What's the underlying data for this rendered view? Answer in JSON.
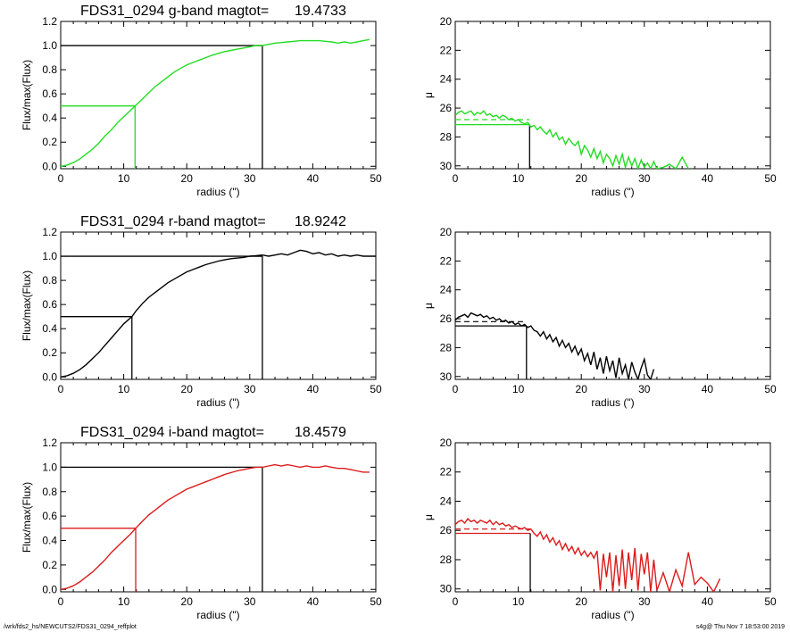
{
  "chart_data": [
    {
      "type": "line",
      "panel": "cumulative-flux",
      "title": "FDS31_0294 g-band  magtot=",
      "magtot": "19.4733",
      "color": "#22dd22",
      "xlabel": "radius (\")",
      "ylabel": "Flux/max(Flux)",
      "xlim": [
        0,
        50
      ],
      "ylim": [
        -0.02,
        1.2
      ],
      "xticks": [
        "0",
        "10",
        "20",
        "30",
        "40",
        "50"
      ],
      "yticks": [
        "0.0",
        "0.2",
        "0.4",
        "0.6",
        "0.8",
        "1.0",
        "1.2"
      ],
      "x": [
        0,
        1,
        2,
        3,
        4,
        5,
        6,
        7,
        8,
        9,
        10,
        11,
        11.8,
        13,
        14,
        15,
        16,
        17,
        18,
        19,
        20,
        21,
        22,
        23,
        24,
        25,
        26,
        27,
        28,
        29,
        30,
        31,
        32,
        33,
        34,
        35,
        36,
        37,
        38,
        39,
        40,
        41,
        42,
        43,
        44,
        45,
        46,
        47,
        48,
        49
      ],
      "y": [
        0,
        0.01,
        0.03,
        0.06,
        0.1,
        0.14,
        0.19,
        0.25,
        0.3,
        0.36,
        0.41,
        0.46,
        0.5,
        0.56,
        0.61,
        0.66,
        0.7,
        0.74,
        0.78,
        0.81,
        0.84,
        0.86,
        0.88,
        0.9,
        0.92,
        0.935,
        0.95,
        0.96,
        0.97,
        0.98,
        0.99,
        1.0,
        1.0,
        1.01,
        1.02,
        1.025,
        1.03,
        1.035,
        1.04,
        1.04,
        1.04,
        1.04,
        1.035,
        1.03,
        1.02,
        1.03,
        1.02,
        1.03,
        1.04,
        1.05
      ],
      "half_radius": 11.8,
      "total_radius": 32
    },
    {
      "type": "line",
      "panel": "surface-brightness",
      "color": "#22dd22",
      "xlabel": "radius (\")",
      "ylabel": "μ",
      "xlim": [
        0,
        50
      ],
      "ylim": [
        30.2,
        20
      ],
      "xticks": [
        "0",
        "10",
        "20",
        "30",
        "40",
        "50"
      ],
      "yticks": [
        "20",
        "22",
        "24",
        "26",
        "28",
        "30"
      ],
      "x": [
        0,
        0.5,
        1,
        1.5,
        2,
        2.5,
        3,
        3.5,
        4,
        4.5,
        5,
        5.5,
        6,
        6.5,
        7,
        7.5,
        8,
        8.5,
        9,
        9.5,
        10,
        10.5,
        11,
        11.5,
        12,
        12.5,
        13,
        13.5,
        14,
        14.5,
        15,
        15.5,
        16,
        16.5,
        17,
        17.5,
        18,
        18.5,
        19,
        19.5,
        20,
        20.5,
        21,
        21.5,
        22,
        22.5,
        23,
        23.5,
        24,
        24.5,
        25,
        25.5,
        26,
        26.5,
        27,
        27.5,
        28,
        28.5,
        29,
        29.5,
        30,
        30.5,
        31,
        31.5,
        32,
        33,
        34,
        35,
        36,
        37
      ],
      "y": [
        26.5,
        26.3,
        26.2,
        26.4,
        26.3,
        26.2,
        26.5,
        26.3,
        26.4,
        26.2,
        26.5,
        26.4,
        26.6,
        26.5,
        26.7,
        26.5,
        26.6,
        26.8,
        26.7,
        26.9,
        26.8,
        27.0,
        27.1,
        27.0,
        27.3,
        27.2,
        27.5,
        27.3,
        27.6,
        27.8,
        27.5,
        28.0,
        27.7,
        28.2,
        28.0,
        28.5,
        28.1,
        28.4,
        28.6,
        28.3,
        29.2,
        28.6,
        28.9,
        29.4,
        28.8,
        29.5,
        29.0,
        29.8,
        29.2,
        29.5,
        30.0,
        29.3,
        29.9,
        29.2,
        30.1,
        29.4,
        30.0,
        29.5,
        30.2,
        29.6,
        30.1,
        29.8,
        30.2,
        29.7,
        30.2,
        30.1,
        29.9,
        30.2,
        29.4,
        30.2
      ],
      "mu_mean_in": 26.8,
      "mu_eff": 27.15,
      "half_radius": 11.8
    },
    {
      "type": "line",
      "panel": "cumulative-flux",
      "title": "FDS31_0294 r-band  magtot=",
      "magtot": "18.9242",
      "color": "#000000",
      "xlabel": "radius (\")",
      "ylabel": "Flux/max(Flux)",
      "xlim": [
        0,
        50
      ],
      "ylim": [
        -0.02,
        1.2
      ],
      "xticks": [
        "0",
        "10",
        "20",
        "30",
        "40",
        "50"
      ],
      "yticks": [
        "0.0",
        "0.2",
        "0.4",
        "0.6",
        "0.8",
        "1.0",
        "1.2"
      ],
      "x": [
        0,
        1,
        2,
        3,
        4,
        5,
        6,
        7,
        8,
        9,
        10,
        11.3,
        12,
        13,
        14,
        15,
        16,
        17,
        18,
        19,
        20,
        21,
        22,
        23,
        24,
        25,
        26,
        27,
        28,
        29,
        30,
        31,
        32,
        33,
        34,
        35,
        36,
        37,
        38,
        39,
        40,
        41,
        42,
        43,
        44,
        45,
        46,
        47,
        48,
        49,
        50
      ],
      "y": [
        0,
        0.01,
        0.03,
        0.06,
        0.1,
        0.15,
        0.2,
        0.26,
        0.32,
        0.38,
        0.44,
        0.5,
        0.55,
        0.61,
        0.66,
        0.7,
        0.74,
        0.78,
        0.81,
        0.84,
        0.87,
        0.89,
        0.91,
        0.93,
        0.945,
        0.96,
        0.97,
        0.98,
        0.985,
        0.99,
        1.0,
        1.005,
        1.01,
        1.0,
        1.01,
        1.02,
        1.01,
        1.03,
        1.05,
        1.04,
        1.02,
        1.03,
        1.01,
        1.02,
        1.0,
        1.01,
        1.0,
        1.01,
        1.0,
        1.0,
        1.0
      ],
      "half_radius": 11.3,
      "total_radius": 32
    },
    {
      "type": "line",
      "panel": "surface-brightness",
      "color": "#000000",
      "xlabel": "radius (\")",
      "ylabel": "μ",
      "xlim": [
        0,
        50
      ],
      "ylim": [
        30.2,
        20
      ],
      "xticks": [
        "0",
        "10",
        "20",
        "30",
        "40",
        "50"
      ],
      "yticks": [
        "20",
        "22",
        "24",
        "26",
        "28",
        "30"
      ],
      "x": [
        0,
        0.5,
        1,
        1.5,
        2,
        2.5,
        3,
        3.5,
        4,
        4.5,
        5,
        5.5,
        6,
        6.5,
        7,
        7.5,
        8,
        8.5,
        9,
        9.5,
        10,
        10.5,
        11,
        11.5,
        12,
        12.5,
        13,
        13.5,
        14,
        14.5,
        15,
        15.5,
        16,
        16.5,
        17,
        17.5,
        18,
        18.5,
        19,
        19.5,
        20,
        20.5,
        21,
        21.5,
        22,
        22.5,
        23,
        23.5,
        24,
        24.5,
        25,
        25.5,
        26,
        26.5,
        27,
        27.5,
        28,
        28.5,
        29,
        29.5,
        30,
        30.5,
        31,
        31.5
      ],
      "y": [
        26.1,
        25.9,
        25.8,
        25.7,
        25.9,
        25.6,
        25.7,
        25.8,
        25.7,
        25.9,
        25.8,
        26.0,
        25.9,
        26.1,
        26.0,
        26.2,
        26.1,
        26.3,
        26.2,
        26.4,
        26.3,
        26.5,
        26.4,
        26.6,
        26.5,
        26.8,
        26.9,
        27.2,
        26.9,
        27.4,
        27.1,
        27.6,
        27.3,
        27.9,
        27.5,
        28.0,
        27.7,
        28.3,
        27.9,
        28.5,
        28.1,
        28.9,
        28.4,
        29.2,
        28.3,
        29.5,
        28.7,
        29.8,
        28.6,
        29.6,
        28.9,
        30.1,
        28.7,
        29.8,
        29.2,
        30.2,
        29.0,
        29.7,
        30.2,
        29.4,
        28.8,
        29.9,
        30.2,
        29.5
      ],
      "mu_mean_in": 26.2,
      "mu_eff": 26.5,
      "half_radius": 11.3
    },
    {
      "type": "line",
      "panel": "cumulative-flux",
      "title": "FDS31_0294 i-band  magtot=",
      "magtot": "18.4579",
      "color": "#dd1a1a",
      "xlabel": "radius (\")",
      "ylabel": "Flux/max(Flux)",
      "xlim": [
        0,
        50
      ],
      "ylim": [
        -0.02,
        1.2
      ],
      "xticks": [
        "0",
        "10",
        "20",
        "30",
        "40",
        "50"
      ],
      "yticks": [
        "0.0",
        "0.2",
        "0.4",
        "0.6",
        "0.8",
        "1.0",
        "1.2"
      ],
      "x": [
        0,
        1,
        2,
        3,
        4,
        5,
        6,
        7,
        8,
        9,
        10,
        11,
        11.9,
        13,
        14,
        15,
        16,
        17,
        18,
        19,
        20,
        21,
        22,
        23,
        24,
        25,
        26,
        27,
        28,
        29,
        30,
        31,
        32,
        33,
        34,
        35,
        36,
        37,
        38,
        39,
        40,
        41,
        42,
        43,
        44,
        45,
        46,
        47,
        48,
        49
      ],
      "y": [
        0,
        0.01,
        0.03,
        0.06,
        0.1,
        0.14,
        0.19,
        0.24,
        0.3,
        0.35,
        0.4,
        0.45,
        0.5,
        0.56,
        0.61,
        0.65,
        0.69,
        0.73,
        0.76,
        0.79,
        0.82,
        0.84,
        0.86,
        0.88,
        0.9,
        0.92,
        0.94,
        0.955,
        0.97,
        0.98,
        0.99,
        1.0,
        1.0,
        1.01,
        1.02,
        1.01,
        1.02,
        1.01,
        1.0,
        1.01,
        1.0,
        1.0,
        1.01,
        1.0,
        0.99,
        0.99,
        0.98,
        0.97,
        0.96,
        0.96
      ],
      "half_radius": 11.9,
      "total_radius": 32
    },
    {
      "type": "line",
      "panel": "surface-brightness",
      "color": "#dd1a1a",
      "xlabel": "radius (\")",
      "ylabel": "μ",
      "xlim": [
        0,
        50
      ],
      "ylim": [
        30.2,
        20
      ],
      "xticks": [
        "0",
        "10",
        "20",
        "30",
        "40",
        "50"
      ],
      "yticks": [
        "20",
        "22",
        "24",
        "26",
        "28",
        "30"
      ],
      "x": [
        0,
        0.5,
        1,
        1.5,
        2,
        2.5,
        3,
        3.5,
        4,
        4.5,
        5,
        5.5,
        6,
        6.5,
        7,
        7.5,
        8,
        8.5,
        9,
        9.5,
        10,
        10.5,
        11,
        11.5,
        12,
        12.5,
        13,
        13.5,
        14,
        14.5,
        15,
        15.5,
        16,
        16.5,
        17,
        17.5,
        18,
        18.5,
        19,
        19.5,
        20,
        20.5,
        21,
        21.5,
        22,
        22.5,
        23,
        23.5,
        24,
        24.5,
        25,
        25.5,
        26,
        26.5,
        27,
        27.5,
        28,
        28.5,
        29,
        29.5,
        30,
        30.5,
        31,
        31.5,
        32,
        33,
        34,
        35,
        36,
        37,
        38,
        39,
        40,
        41,
        42
      ],
      "y": [
        25.6,
        25.4,
        25.3,
        25.5,
        25.2,
        25.4,
        25.3,
        25.5,
        25.3,
        25.4,
        25.5,
        25.3,
        25.6,
        25.4,
        25.6,
        25.5,
        25.7,
        25.6,
        25.8,
        25.7,
        25.8,
        25.9,
        25.8,
        26.0,
        25.9,
        26.2,
        26.4,
        26.1,
        26.6,
        26.3,
        26.8,
        26.5,
        27.0,
        26.7,
        27.3,
        26.9,
        27.4,
        27.1,
        27.6,
        27.2,
        27.7,
        27.4,
        27.8,
        27.5,
        27.9,
        27.4,
        30.1,
        27.6,
        29.2,
        27.5,
        30.2,
        27.7,
        29.8,
        27.3,
        30.0,
        27.5,
        29.4,
        27.2,
        30.1,
        27.6,
        29.0,
        27.5,
        30.2,
        28.0,
        30.1,
        28.9,
        30.2,
        28.7,
        29.8,
        27.5,
        29.7,
        29.2,
        29.6,
        30.2,
        29.3
      ],
      "mu_mean_in": 25.9,
      "mu_eff": 26.2,
      "half_radius": 11.9
    }
  ],
  "footer": {
    "left": "/wrk/fds2_hs/NEWCUTS2/FDS31_0294_reffplot",
    "right": "s4g@  Thu Nov  7 18:53:00 2019"
  }
}
